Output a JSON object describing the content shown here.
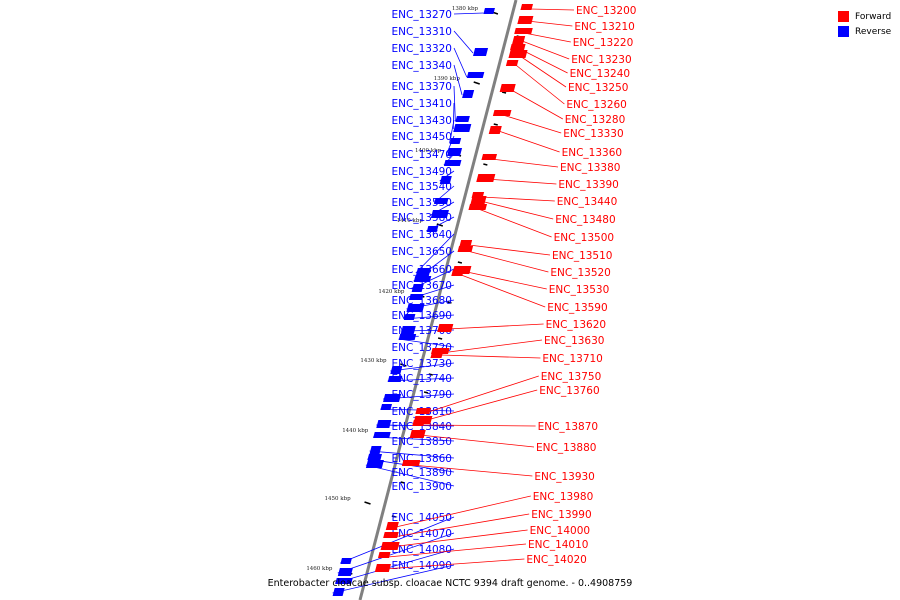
{
  "caption": "Enterobacter cloacae subsp. cloacae NCTC 9394 draft genome. - 0..4908759",
  "legend": [
    {
      "label": "Forward",
      "color": "#ff0000"
    },
    {
      "label": "Reverse",
      "color": "#0000ff"
    }
  ],
  "colors": {
    "forward": "#ff0000",
    "reverse": "#0000ff",
    "backbone": "#808080",
    "other": "#000000"
  },
  "ticks": [
    "1380 kbp",
    "1390 kbp",
    "1400 kbp",
    "1410 kbp",
    "1420 kbp",
    "1430 kbp",
    "1440 kbp",
    "1450 kbp",
    "1460 kbp"
  ],
  "reverse_genes": [
    "ENC_13270",
    "ENC_13310",
    "ENC_13320",
    "ENC_13340",
    "ENC_13370",
    "ENC_13410",
    "ENC_13430",
    "ENC_13450",
    "ENC_13470",
    "ENC_13490",
    "ENC_13540",
    "ENC_13550",
    "ENC_13580",
    "ENC_13640",
    "ENC_13650",
    "ENC_13660",
    "ENC_13670",
    "ENC_13680",
    "ENC_13690",
    "ENC_13700",
    "ENC_13720",
    "ENC_13730",
    "ENC_13740",
    "ENC_13790",
    "ENC_13810",
    "ENC_13840",
    "ENC_13850",
    "ENC_13860",
    "ENC_13890",
    "ENC_13900",
    "ENC_14050",
    "ENC_14070",
    "ENC_14080",
    "ENC_14090"
  ],
  "forward_genes": [
    "ENC_13200",
    "ENC_13210",
    "ENC_13220",
    "ENC_13230",
    "ENC_13240",
    "ENC_13250",
    "ENC_13260",
    "ENC_13280",
    "ENC_13330",
    "ENC_13360",
    "ENC_13380",
    "ENC_13390",
    "ENC_13440",
    "ENC_13480",
    "ENC_13500",
    "ENC_13510",
    "ENC_13520",
    "ENC_13530",
    "ENC_13590",
    "ENC_13620",
    "ENC_13630",
    "ENC_13710",
    "ENC_13750",
    "ENC_13760",
    "ENC_13870",
    "ENC_13880",
    "ENC_13930",
    "ENC_13980",
    "ENC_13990",
    "ENC_14000",
    "ENC_14010",
    "ENC_14020"
  ]
}
